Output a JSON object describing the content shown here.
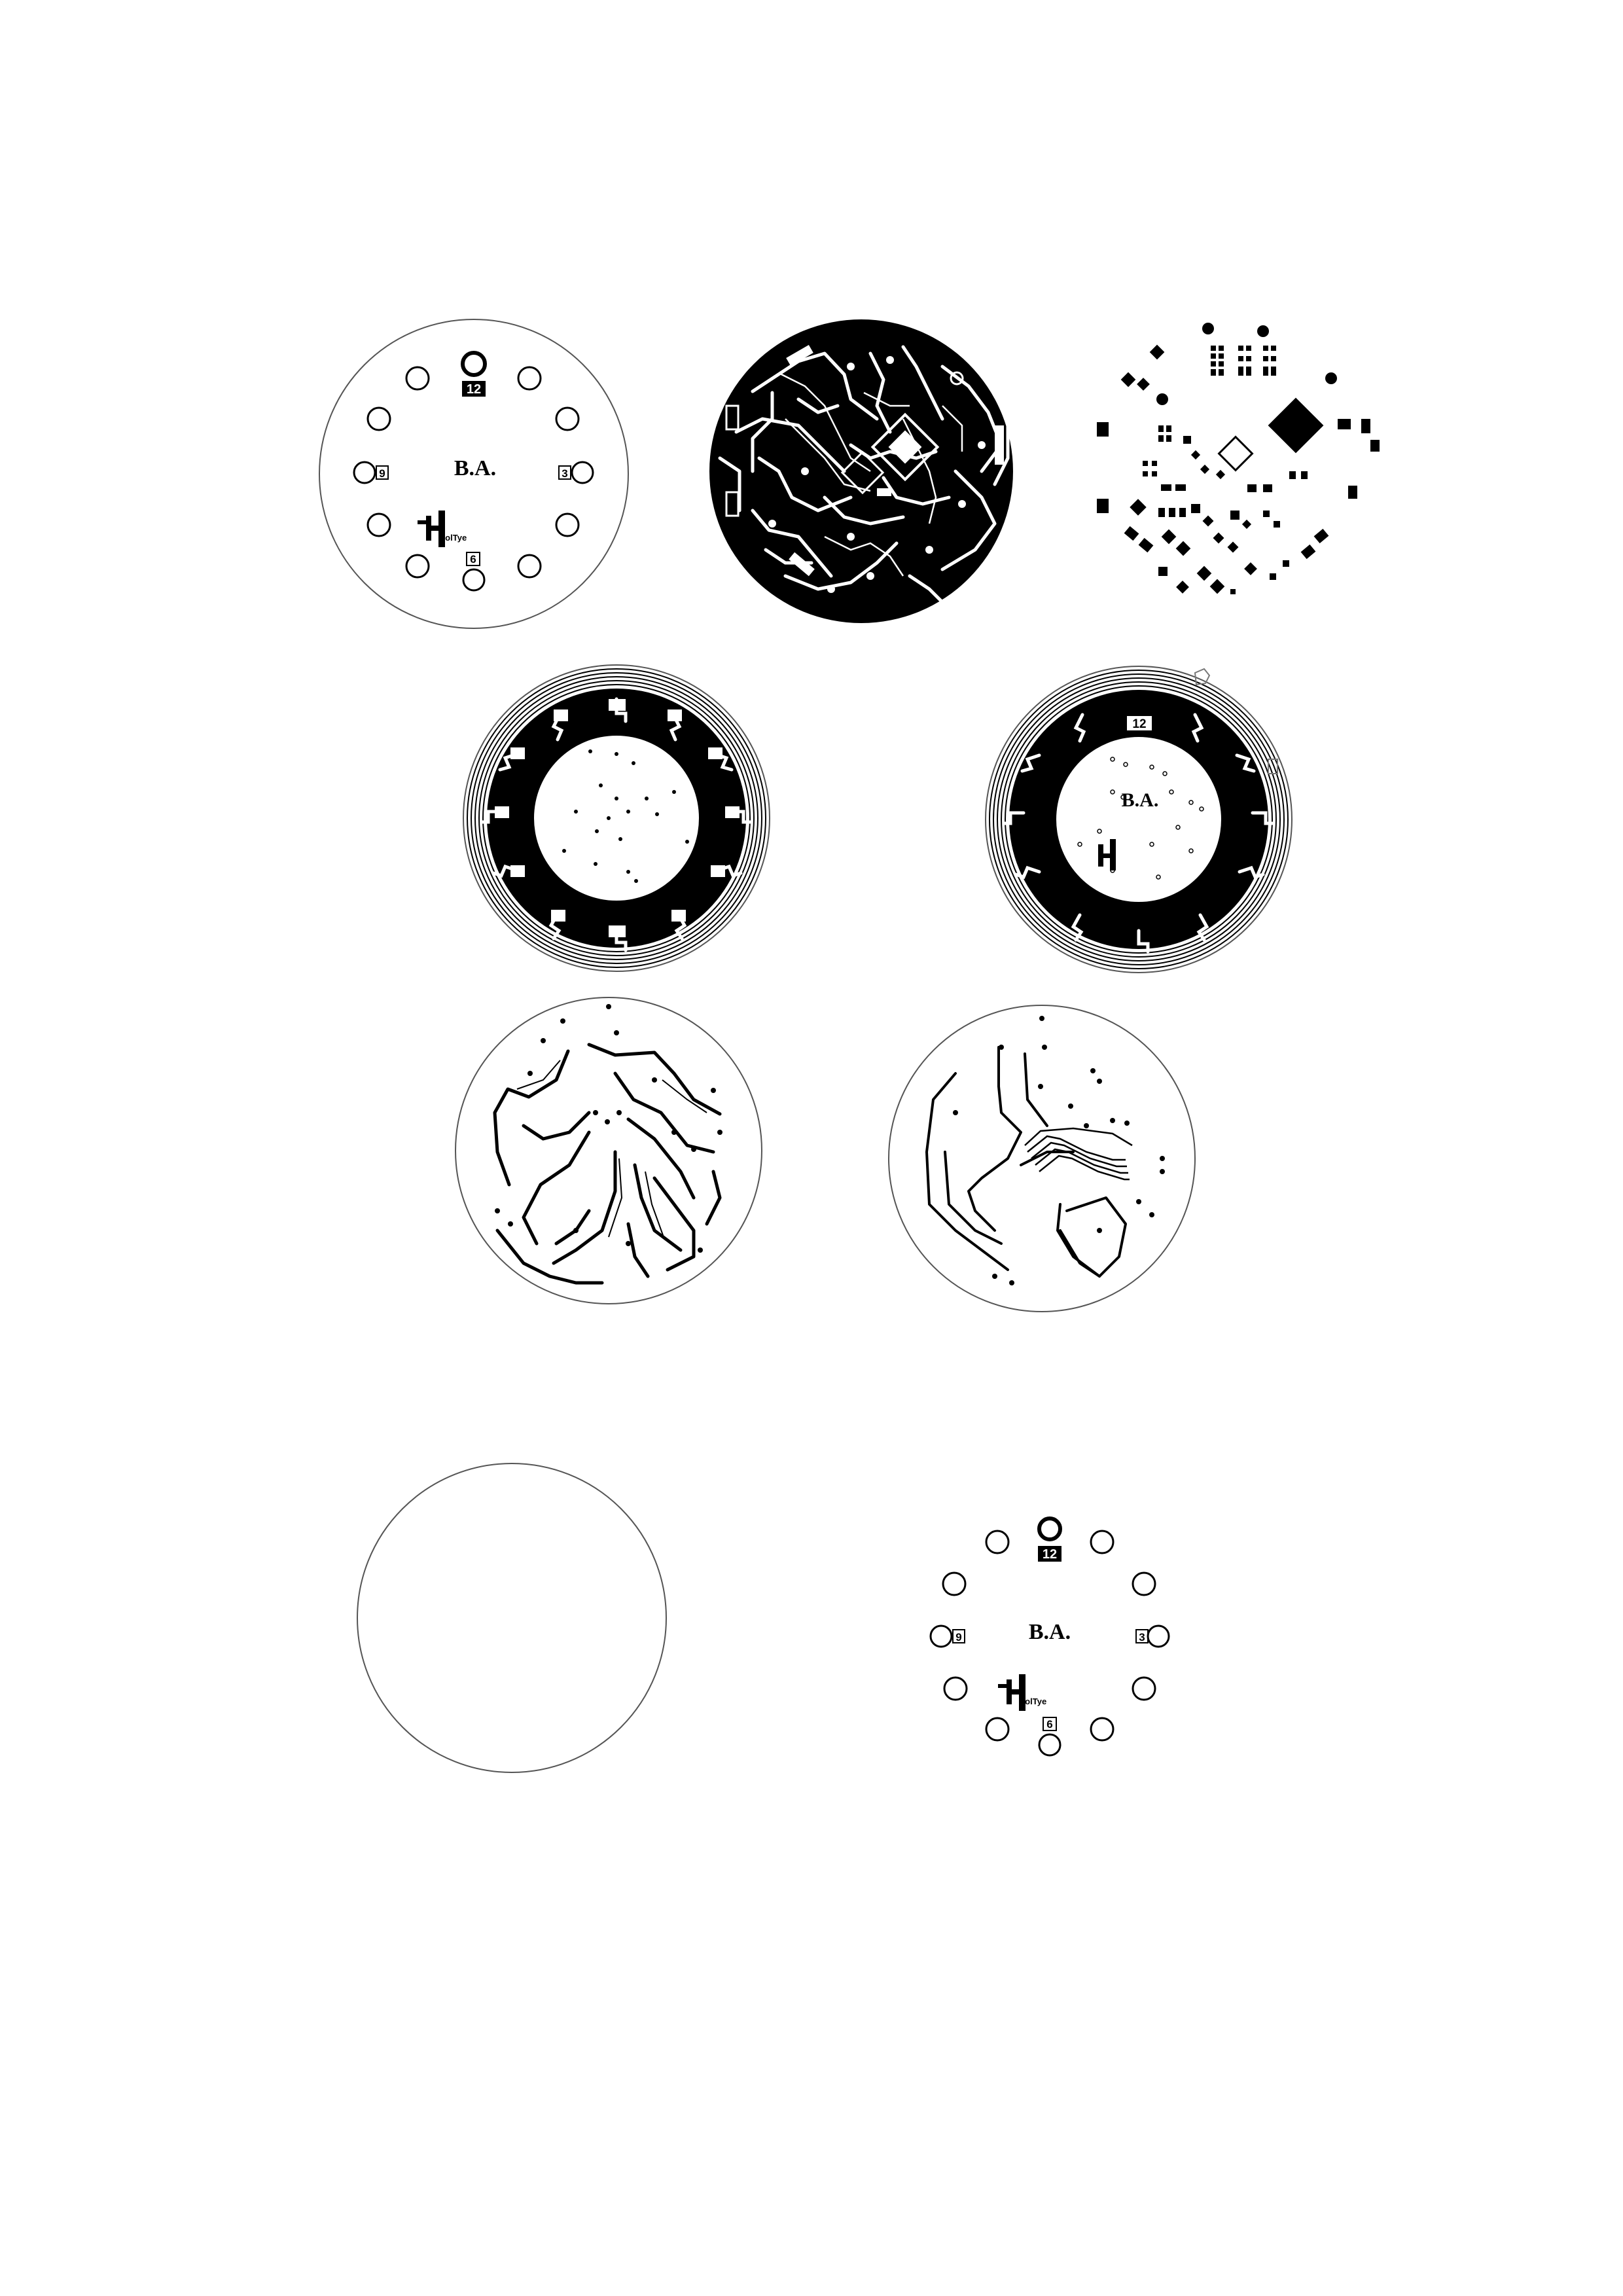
{
  "page": {
    "title": ""
  },
  "silkscreen": {
    "hours": [
      "12",
      "3",
      "6",
      "9"
    ],
    "initials": "B.A.",
    "logo_text": "HolTye"
  },
  "ring_board": {
    "initials": "B.A.",
    "hour": "12"
  },
  "colors": {
    "ink": "#000000",
    "paper": "#ffffff",
    "outline": "#555555"
  }
}
